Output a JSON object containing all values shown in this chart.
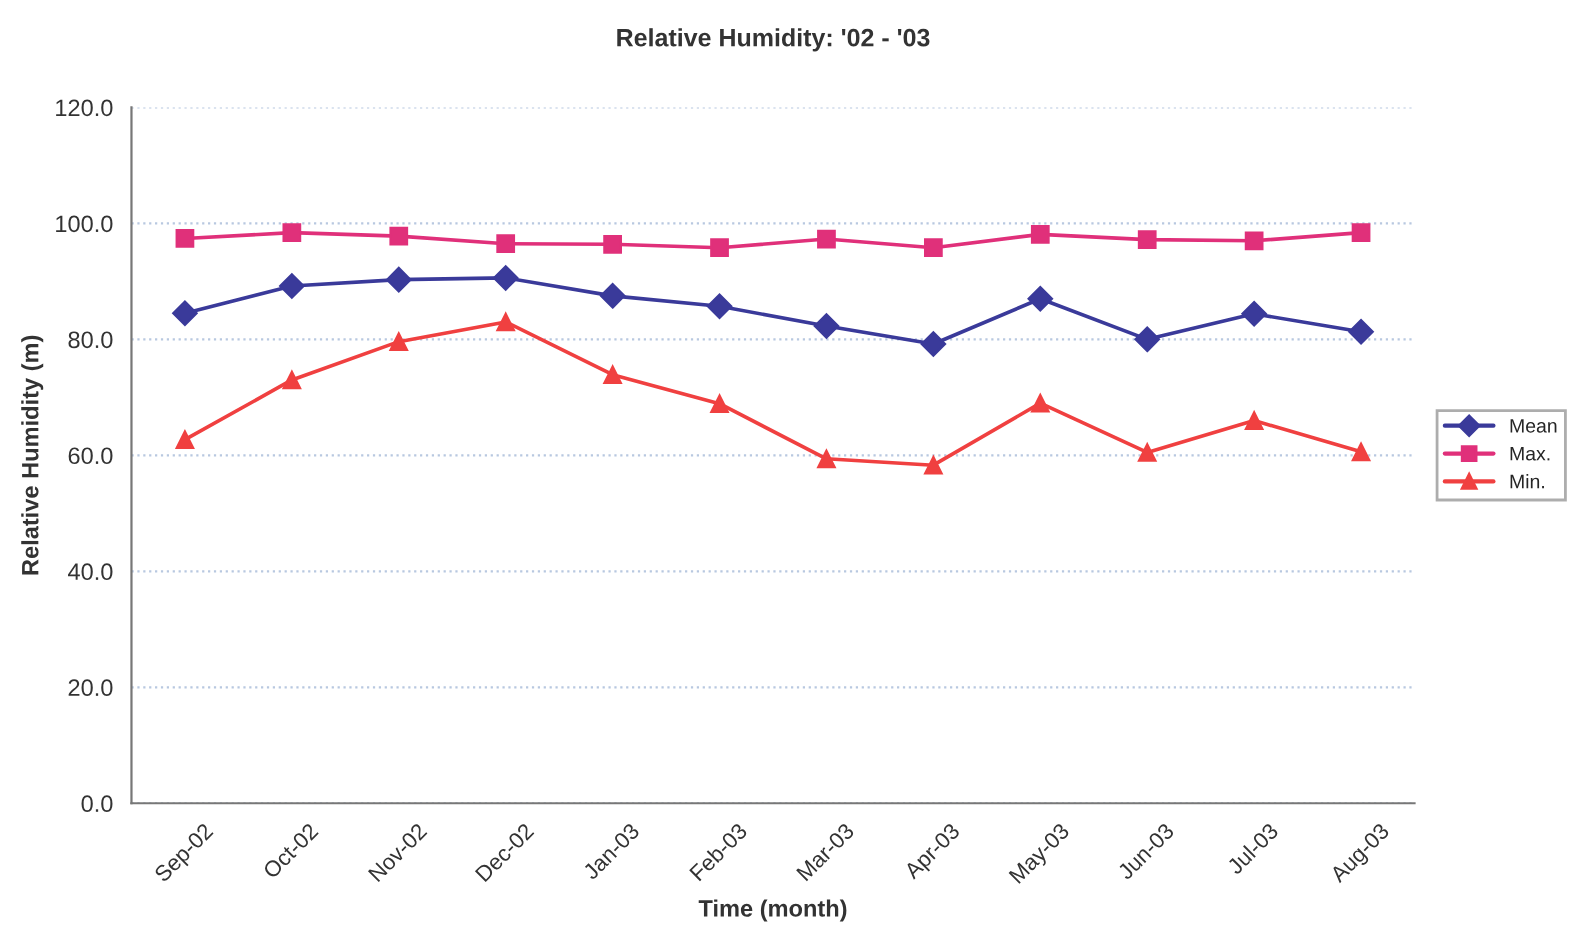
{
  "chart_data": {
    "type": "line",
    "title": "Relative Humidity: '02 - '03",
    "xlabel": "Time (month)",
    "ylabel": "Relative Humidity (m)",
    "categories": [
      "Sep-02",
      "Oct-02",
      "Nov-02",
      "Dec-02",
      "Jan-03",
      "Feb-03",
      "Mar-03",
      "Apr-03",
      "May-03",
      "Jun-03",
      "Jul-03",
      "Aug-03"
    ],
    "series": [
      {
        "name": "Mean",
        "color": "#3a3a9a",
        "marker": "diamond",
        "values": [
          84.5,
          89.2,
          90.3,
          90.6,
          87.5,
          85.7,
          82.3,
          79.2,
          87.0,
          80.0,
          84.4,
          81.3
        ]
      },
      {
        "name": "Max.",
        "color": "#e0307a",
        "marker": "square",
        "values": [
          97.4,
          98.4,
          97.8,
          96.5,
          96.4,
          95.8,
          97.3,
          95.8,
          98.1,
          97.2,
          97.0,
          98.4
        ]
      },
      {
        "name": "Min.",
        "color": "#f04040",
        "marker": "triangle",
        "values": [
          62.7,
          73.0,
          79.6,
          83.0,
          73.9,
          68.9,
          59.4,
          58.3,
          69.0,
          60.5,
          66.0,
          60.6
        ]
      }
    ],
    "ylim": [
      0,
      120
    ],
    "yticks": [
      {
        "value": 0,
        "label": "0.0"
      },
      {
        "value": 20,
        "label": "20.0"
      },
      {
        "value": 40,
        "label": "40.0"
      },
      {
        "value": 60,
        "label": "60.0"
      },
      {
        "value": 80,
        "label": "80.0"
      },
      {
        "value": 100,
        "label": "100.0"
      },
      {
        "value": 120,
        "label": "120.0"
      }
    ],
    "grid": "y",
    "legend": "right"
  }
}
